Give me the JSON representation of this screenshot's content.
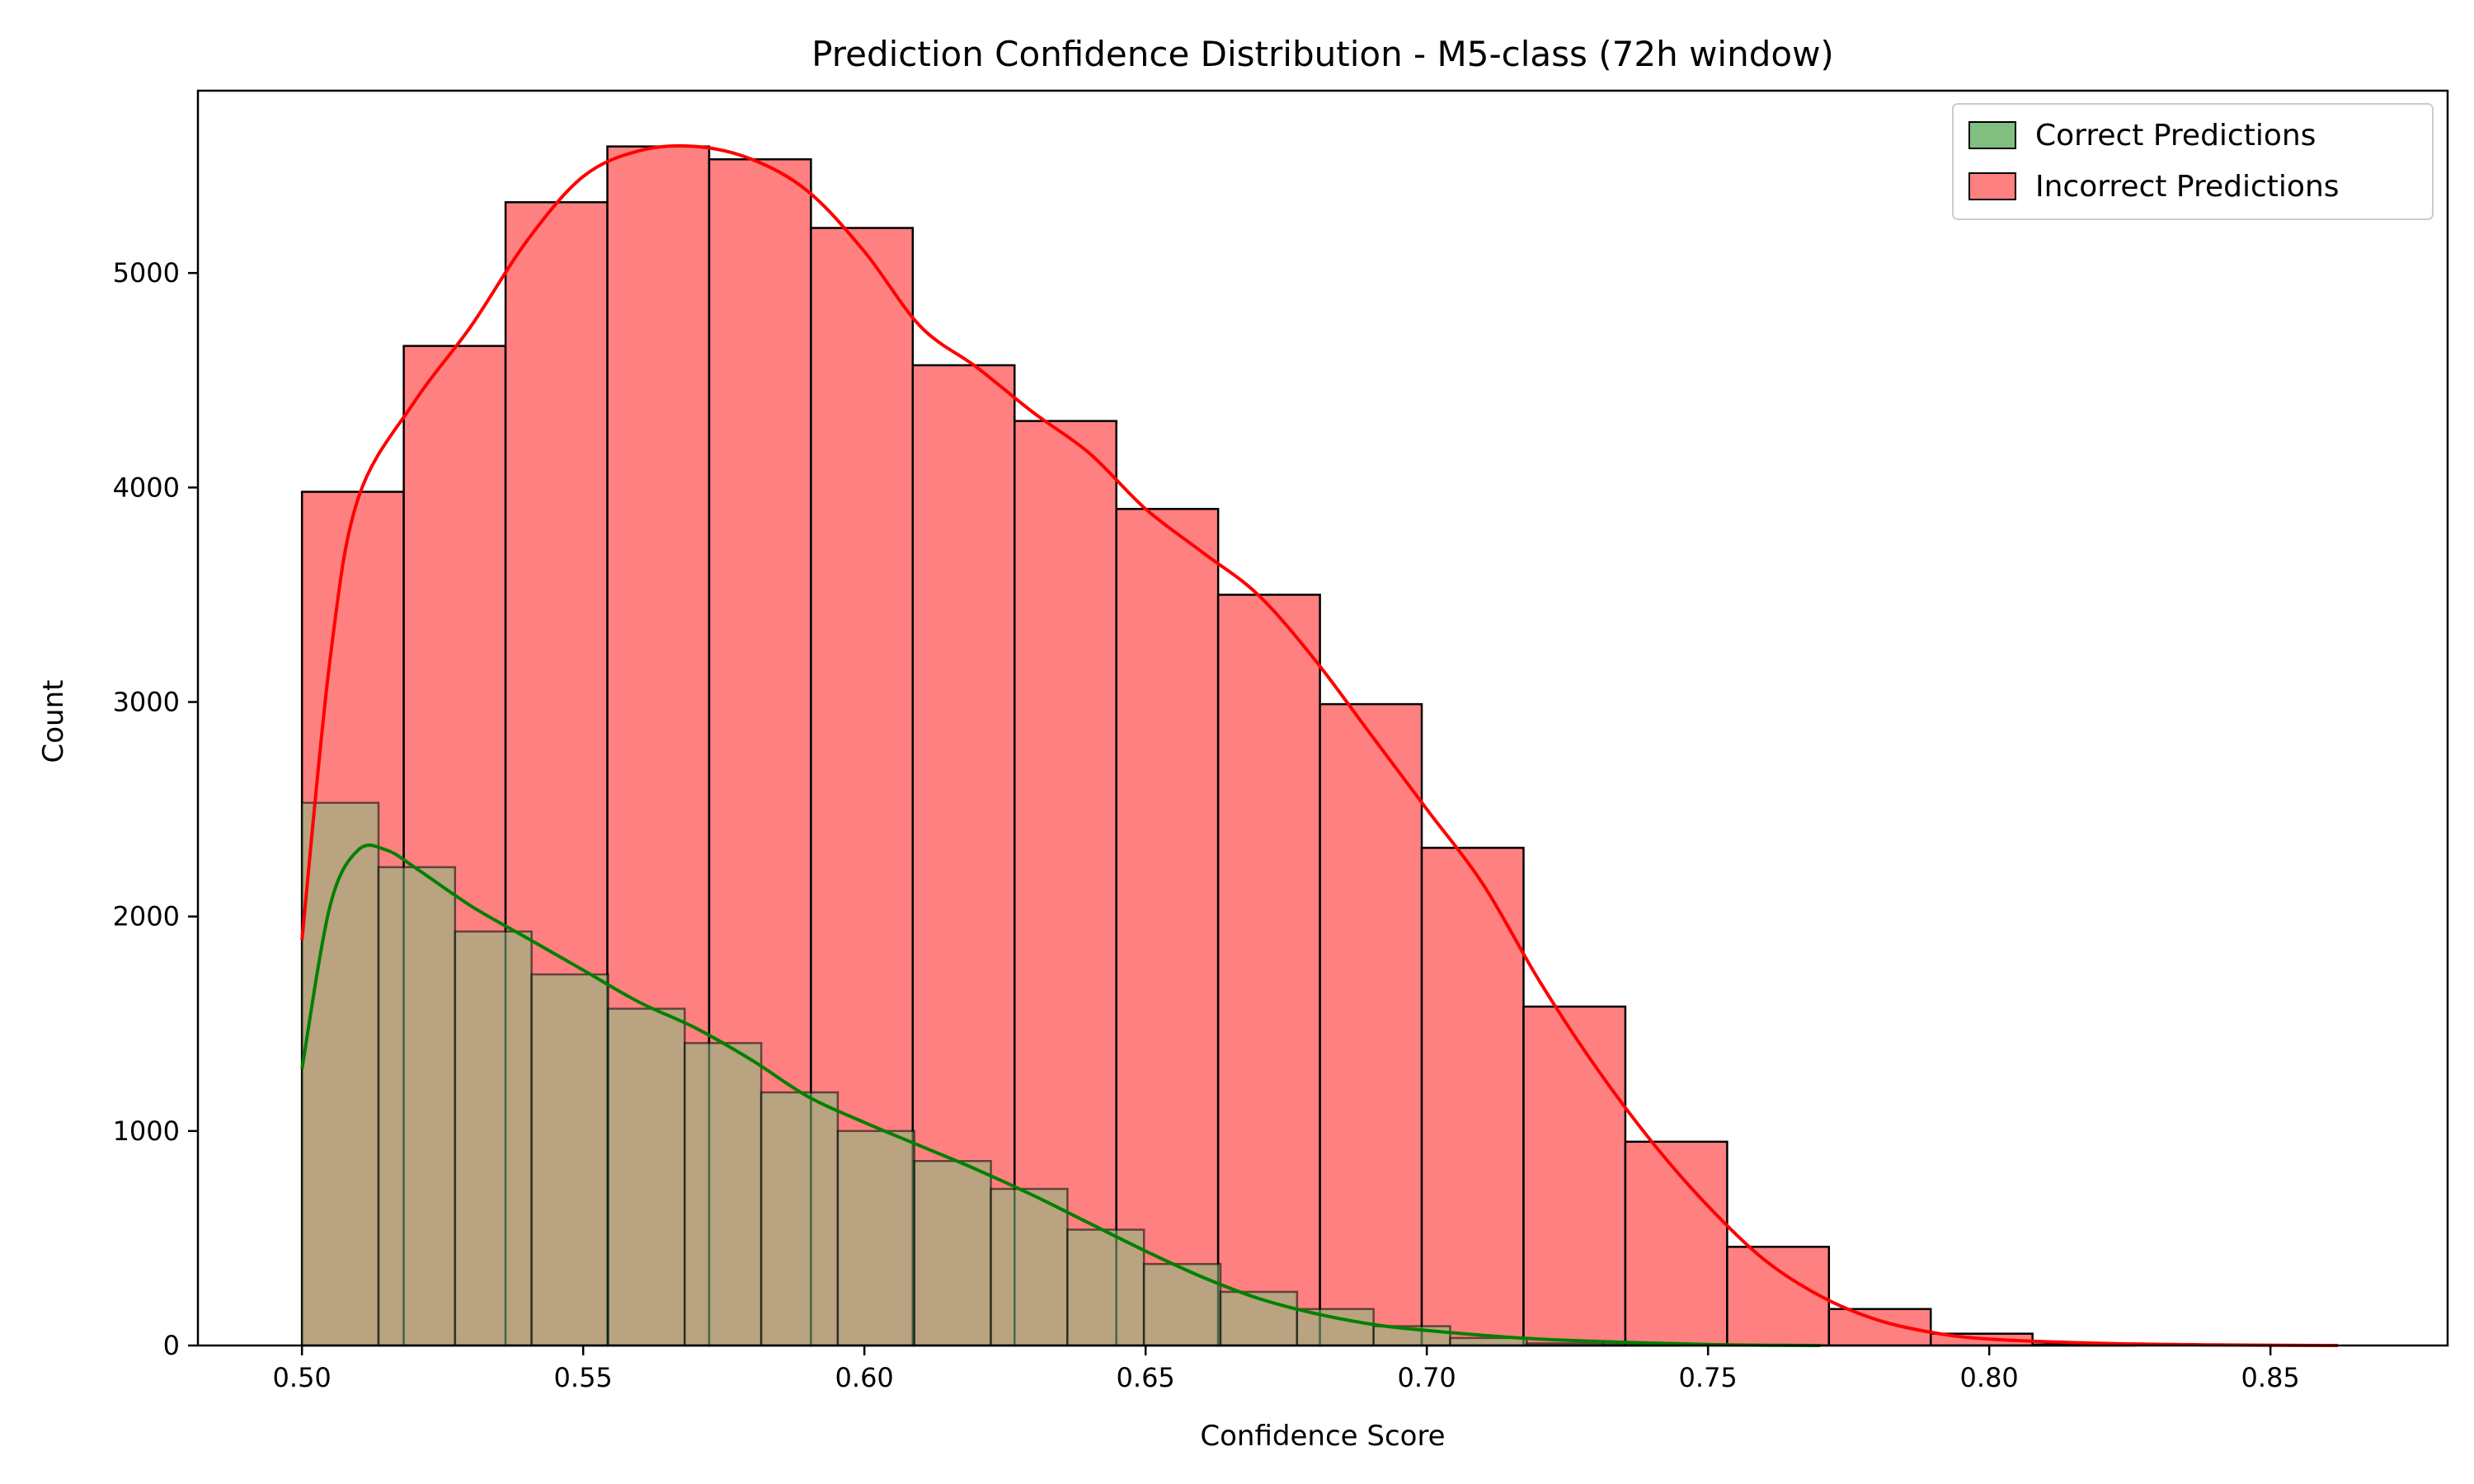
{
  "chart_data": {
    "type": "histogram",
    "title": "Prediction Confidence Distribution - M5-class (72h window)",
    "xlabel": "Confidence Score",
    "ylabel": "Count",
    "xlim": [
      0.4815,
      0.8815
    ],
    "ylim": [
      0,
      5850
    ],
    "x_ticks": [
      "0.50",
      "0.55",
      "0.60",
      "0.65",
      "0.70",
      "0.75",
      "0.80",
      "0.85"
    ],
    "x_tick_values": [
      0.5,
      0.55,
      0.6,
      0.65,
      0.7,
      0.75,
      0.8,
      0.85
    ],
    "y_ticks": [
      "0",
      "1000",
      "2000",
      "3000",
      "4000",
      "5000"
    ],
    "y_tick_values": [
      0,
      1000,
      2000,
      3000,
      4000,
      5000
    ],
    "legend_position": "upper-right",
    "series": [
      {
        "name": "Incorrect Predictions",
        "color": "#ff0000",
        "fill": "#ff8080",
        "bin_start": 0.5,
        "bin_width": 0.0181,
        "counts": [
          3980,
          4660,
          5330,
          5590,
          5530,
          5210,
          4570,
          4310,
          3900,
          3500,
          2990,
          2320,
          1580,
          950,
          460,
          170,
          55,
          5,
          0,
          0
        ],
        "kde": [
          [
            0.5,
            1890
          ],
          [
            0.505,
            3200
          ],
          [
            0.51,
            3950
          ],
          [
            0.52,
            4400
          ],
          [
            0.53,
            4750
          ],
          [
            0.54,
            5150
          ],
          [
            0.55,
            5450
          ],
          [
            0.56,
            5570
          ],
          [
            0.57,
            5590
          ],
          [
            0.58,
            5530
          ],
          [
            0.59,
            5380
          ],
          [
            0.6,
            5100
          ],
          [
            0.61,
            4750
          ],
          [
            0.62,
            4560
          ],
          [
            0.63,
            4350
          ],
          [
            0.64,
            4160
          ],
          [
            0.65,
            3900
          ],
          [
            0.66,
            3700
          ],
          [
            0.67,
            3500
          ],
          [
            0.68,
            3200
          ],
          [
            0.69,
            2850
          ],
          [
            0.7,
            2500
          ],
          [
            0.71,
            2150
          ],
          [
            0.72,
            1700
          ],
          [
            0.73,
            1300
          ],
          [
            0.74,
            950
          ],
          [
            0.75,
            650
          ],
          [
            0.76,
            400
          ],
          [
            0.77,
            230
          ],
          [
            0.78,
            120
          ],
          [
            0.79,
            60
          ],
          [
            0.8,
            30
          ],
          [
            0.82,
            10
          ],
          [
            0.84,
            3
          ],
          [
            0.862,
            0
          ]
        ]
      },
      {
        "name": "Correct Predictions",
        "color": "#008000",
        "fill": "#80bf80",
        "bin_start": 0.5,
        "bin_width": 0.01361,
        "counts": [
          2530,
          2230,
          1930,
          1730,
          1570,
          1410,
          1180,
          1000,
          860,
          730,
          540,
          380,
          250,
          170,
          90,
          35,
          10,
          5,
          0,
          0
        ],
        "kde": [
          [
            0.5,
            1290
          ],
          [
            0.505,
            2050
          ],
          [
            0.51,
            2310
          ],
          [
            0.515,
            2310
          ],
          [
            0.52,
            2230
          ],
          [
            0.53,
            2050
          ],
          [
            0.54,
            1900
          ],
          [
            0.55,
            1750
          ],
          [
            0.56,
            1600
          ],
          [
            0.57,
            1480
          ],
          [
            0.58,
            1330
          ],
          [
            0.59,
            1160
          ],
          [
            0.6,
            1040
          ],
          [
            0.61,
            930
          ],
          [
            0.62,
            820
          ],
          [
            0.63,
            700
          ],
          [
            0.64,
            570
          ],
          [
            0.65,
            440
          ],
          [
            0.66,
            320
          ],
          [
            0.67,
            220
          ],
          [
            0.68,
            150
          ],
          [
            0.69,
            100
          ],
          [
            0.7,
            70
          ],
          [
            0.72,
            30
          ],
          [
            0.75,
            5
          ],
          [
            0.77,
            0
          ]
        ]
      }
    ],
    "legend": [
      {
        "label": "Correct Predictions",
        "fill": "#80bf80"
      },
      {
        "label": "Incorrect Predictions",
        "fill": "#ff8080"
      }
    ]
  }
}
